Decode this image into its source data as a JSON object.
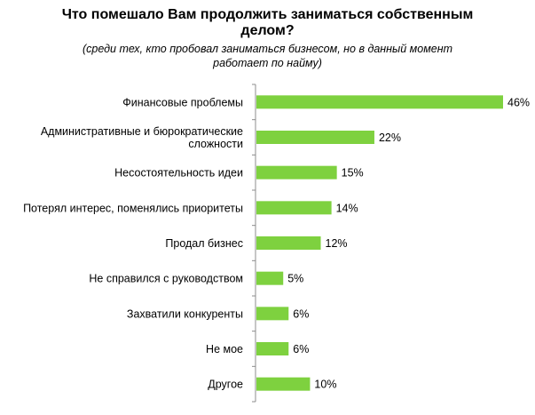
{
  "title_lines": [
    "Что помешало Вам продолжить заниматься собственным",
    "делом?"
  ],
  "subtitle_lines": [
    "(среди тех, кто пробовал заниматься бизнесом, но в данный момент",
    "работает по найму)"
  ],
  "colors": {
    "bar": "#7ed13f",
    "axis": "#8c8c8c"
  },
  "chart_data": {
    "type": "bar",
    "orientation": "horizontal",
    "title": "Что помешало Вам продолжить заниматься собственным делом?",
    "subtitle": "(среди тех, кто пробовал заниматься бизнесом, но в данный момент работает по найму)",
    "categories": [
      [
        "Финансовые проблемы"
      ],
      [
        "Административные  и  бюрократические",
        "сложности"
      ],
      [
        "Несостоятельность идеи"
      ],
      [
        "Потерял интерес, поменялись  приоритеты"
      ],
      [
        "Продал бизнес"
      ],
      [
        "Не справился  с руководством"
      ],
      [
        "Захватили конкуренты"
      ],
      [
        "Не мое"
      ],
      [
        "Другое"
      ]
    ],
    "values": [
      46,
      22,
      15,
      14,
      12,
      5,
      6,
      6,
      10
    ],
    "value_labels": [
      "46%",
      "22%",
      "15%",
      "14%",
      "12%",
      "5%",
      "6%",
      "6%",
      "10%"
    ],
    "xlim": [
      0,
      50
    ],
    "grid": false
  }
}
